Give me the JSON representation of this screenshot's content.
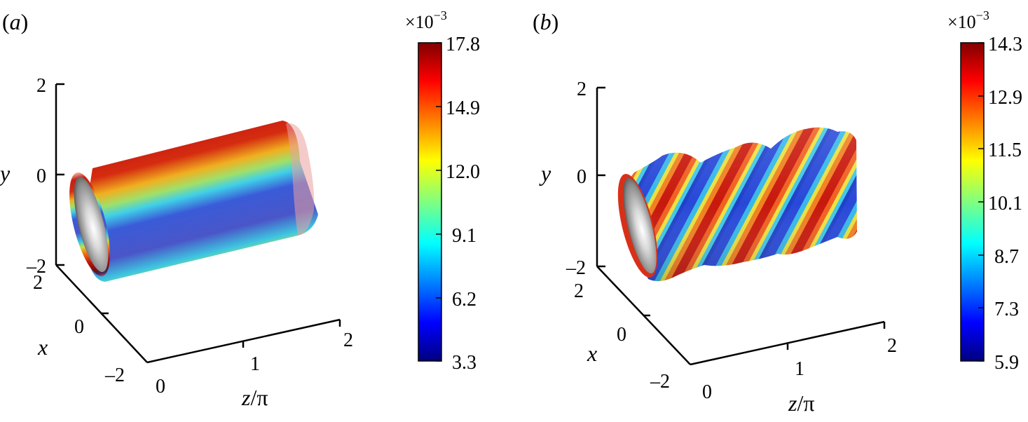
{
  "figure": {
    "panels": [
      {
        "label": "(a)",
        "label_letter": "a",
        "axes": {
          "y_label": "y",
          "x_label": "x",
          "z_label": "z/π",
          "z_label_italic": "z",
          "z_label_rest": "/π",
          "y_ticks": [
            "2",
            "0",
            "–2"
          ],
          "x_ticks": [
            "2",
            "0",
            "–2"
          ],
          "z_ticks": [
            "0",
            "1",
            "2"
          ]
        },
        "colorbar": {
          "multiplier": "×10",
          "exponent": "−3",
          "ticks": [
            "17.8",
            "14.9",
            "12.0",
            "9.1",
            "6.2",
            "3.3"
          ],
          "colormap": "jet"
        },
        "surface": {
          "shape": "straight cylinder",
          "stripes": "axial"
        }
      },
      {
        "label": "(b)",
        "label_letter": "b",
        "axes": {
          "y_label": "y",
          "x_label": "x",
          "z_label": "z/π",
          "z_label_italic": "z",
          "z_label_rest": "/π",
          "y_ticks": [
            "2",
            "0",
            "–2"
          ],
          "x_ticks": [
            "2",
            "0",
            "–2"
          ],
          "z_ticks": [
            "0",
            "1",
            "2"
          ]
        },
        "colorbar": {
          "multiplier": "×10",
          "exponent": "−3",
          "ticks": [
            "14.3",
            "12.9",
            "11.5",
            "10.1",
            "8.7",
            "7.3",
            "5.9"
          ],
          "colormap": "jet"
        },
        "surface": {
          "shape": "helically deformed cylinder",
          "stripes": "helical"
        }
      }
    ]
  }
}
